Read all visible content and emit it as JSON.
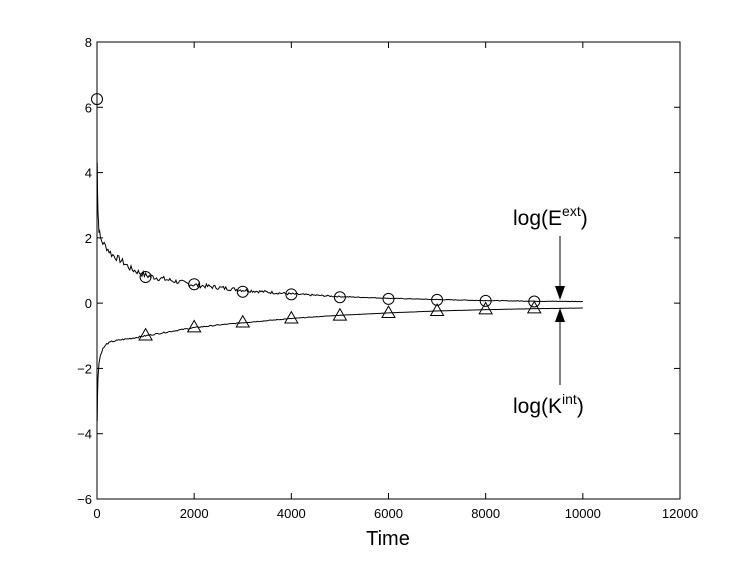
{
  "chart_data": {
    "type": "line",
    "title": "",
    "xlabel": "Time",
    "ylabel": "",
    "xlim": [
      0,
      12000
    ],
    "ylim": [
      -6,
      8
    ],
    "x_ticks": [
      "0",
      "2000",
      "4000",
      "6000",
      "8000",
      "10000",
      "12000"
    ],
    "y_ticks": [
      "−6",
      "−4",
      "−2",
      "0",
      "2",
      "4",
      "6",
      "8"
    ],
    "grid": false,
    "annotations": {
      "upper": {
        "base": "log(E",
        "sup": "ext",
        "close": ")"
      },
      "lower": {
        "base": "log(K",
        "sup": "int",
        "close": ")"
      }
    },
    "series": [
      {
        "line_x": [
          5,
          10,
          20,
          40,
          70,
          120,
          200,
          300,
          500,
          700,
          1000,
          1500,
          2000,
          2500,
          3000,
          3500,
          4000,
          5000,
          6000,
          7000,
          8000,
          9000,
          10000
        ],
        "line_y": [
          4.3,
          3.6,
          2.8,
          2.25,
          2.0,
          1.85,
          1.7,
          1.5,
          1.3,
          1.05,
          0.85,
          0.7,
          0.56,
          0.48,
          0.4,
          0.34,
          0.28,
          0.2,
          0.15,
          0.11,
          0.08,
          0.06,
          0.05
        ],
        "marker": "circle",
        "marker_x": [
          0,
          1000,
          2000,
          3000,
          4000,
          5000,
          6000,
          7000,
          8000,
          9000
        ],
        "marker_y": [
          6.25,
          0.8,
          0.58,
          0.35,
          0.27,
          0.18,
          0.13,
          0.1,
          0.07,
          0.05
        ]
      },
      {
        "line_x": [
          5,
          10,
          20,
          40,
          70,
          120,
          200,
          300,
          500,
          700,
          1000,
          1500,
          2000,
          2500,
          3000,
          4000,
          5000,
          6000,
          7000,
          8000,
          9000,
          10000
        ],
        "line_y": [
          -3.6,
          -2.9,
          -2.3,
          -1.85,
          -1.6,
          -1.4,
          -1.25,
          -1.18,
          -1.12,
          -1.08,
          -1.0,
          -0.87,
          -0.75,
          -0.67,
          -0.6,
          -0.47,
          -0.37,
          -0.3,
          -0.24,
          -0.2,
          -0.17,
          -0.15
        ],
        "marker": "triangle",
        "marker_x": [
          1000,
          2000,
          3000,
          4000,
          5000,
          6000,
          7000,
          8000,
          9000
        ],
        "marker_y": [
          -0.98,
          -0.73,
          -0.58,
          -0.46,
          -0.37,
          -0.29,
          -0.23,
          -0.18,
          -0.15
        ]
      }
    ]
  }
}
